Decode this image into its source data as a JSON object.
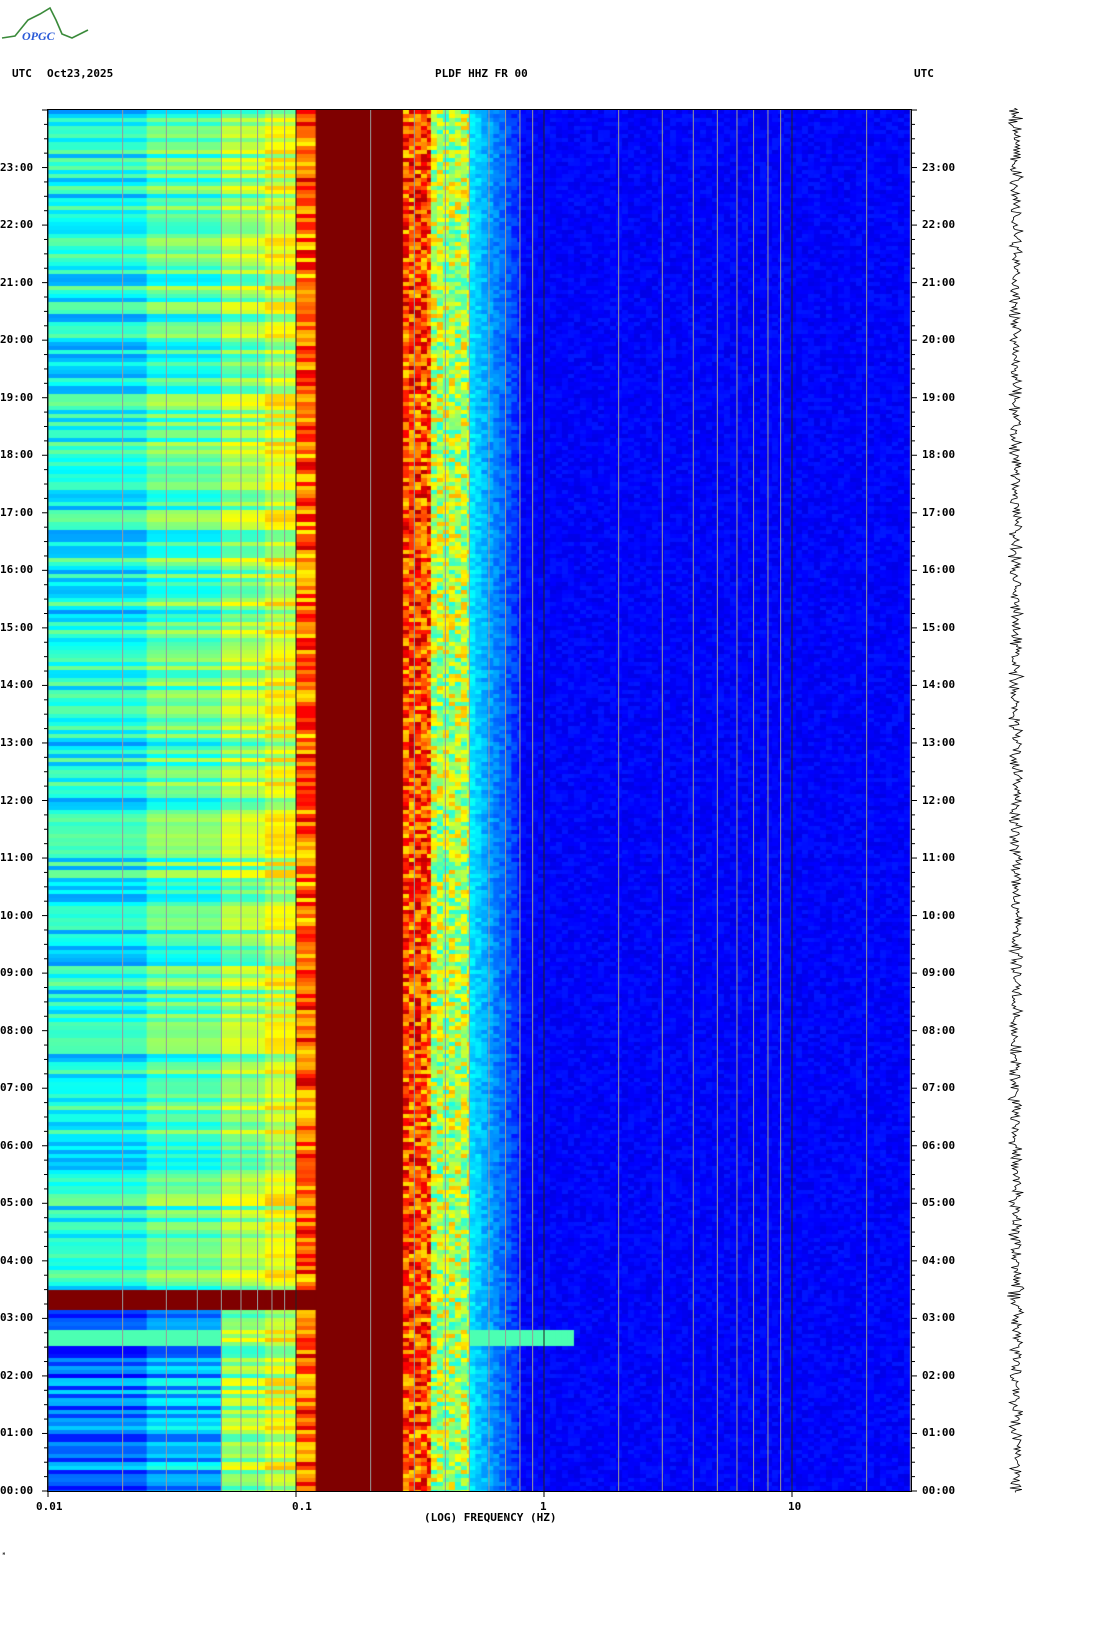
{
  "logo": {
    "text": "OPGC"
  },
  "header": {
    "left_tz": "UTC",
    "date": "Oct23,2025",
    "station": "PLDF HHZ FR 00",
    "right_tz": "UTC"
  },
  "footer_mark": "ᴹ",
  "chart_data": {
    "type": "heatmap",
    "title": "PLDF HHZ FR 00",
    "xlabel": "(LOG) FREQUENCY (HZ)",
    "ylabel": "UTC",
    "xscale": "log",
    "xlim": [
      0.01,
      30
    ],
    "ylim_hours": [
      0,
      24
    ],
    "x_ticks": [
      {
        "value": 0.01,
        "label": "0.01"
      },
      {
        "value": 0.1,
        "label": "0.1"
      },
      {
        "value": 1,
        "label": "1"
      },
      {
        "value": 10,
        "label": "10"
      }
    ],
    "y_ticks": [
      "00:00",
      "01:00",
      "02:00",
      "03:00",
      "04:00",
      "05:00",
      "06:00",
      "07:00",
      "08:00",
      "09:00",
      "10:00",
      "11:00",
      "12:00",
      "13:00",
      "14:00",
      "15:00",
      "16:00",
      "17:00",
      "18:00",
      "19:00",
      "20:00",
      "21:00",
      "22:00",
      "23:00"
    ],
    "colormap": "jet",
    "band_levels": [
      {
        "f_min": 0.01,
        "f_max": 0.025,
        "level": 0.38
      },
      {
        "f_min": 0.025,
        "f_max": 0.05,
        "level": 0.45
      },
      {
        "f_min": 0.05,
        "f_max": 0.075,
        "level": 0.52
      },
      {
        "f_min": 0.075,
        "f_max": 0.1,
        "level": 0.58
      },
      {
        "f_min": 0.1,
        "f_max": 0.12,
        "level": 0.78
      },
      {
        "f_min": 0.12,
        "f_max": 0.27,
        "level": 1.0
      },
      {
        "f_min": 0.27,
        "f_max": 0.35,
        "level": 0.8
      },
      {
        "f_min": 0.35,
        "f_max": 0.5,
        "level": 0.55
      },
      {
        "f_min": 0.5,
        "f_max": 0.8,
        "level": 0.25
      },
      {
        "f_min": 0.8,
        "f_max": 30,
        "level": 0.1
      }
    ],
    "events": [
      {
        "time_hours": 3.35,
        "f_max": 0.1,
        "level": 1.0,
        "description": "strong low-frequency energy"
      },
      {
        "time_hours": 2.7,
        "f_max": 1.3,
        "level": 0.45
      }
    ],
    "gridlines": true
  }
}
